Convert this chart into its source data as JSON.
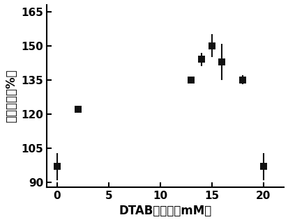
{
  "x": [
    0,
    2,
    13,
    14,
    15,
    16,
    18,
    20
  ],
  "y": [
    97,
    122,
    135,
    144,
    150,
    143,
    135,
    97
  ],
  "yerr": [
    6,
    0,
    0,
    3,
    5,
    8,
    2,
    6
  ],
  "xlim": [
    -1,
    22
  ],
  "ylim": [
    88,
    168
  ],
  "xticks": [
    0,
    5,
    10,
    15,
    20
  ],
  "yticks": [
    90,
    105,
    120,
    135,
    150,
    165
  ],
  "xlabel": "DTAB的浓度（mM）",
  "ylabel": "相对活性（%）",
  "marker": "s",
  "marker_color": "#111111",
  "marker_size": 7,
  "capsize": 3,
  "elinewidth": 1.5,
  "capthick": 1.5,
  "bg_color": "#ffffff",
  "tick_labelsize": 11,
  "label_fontsize": 12
}
